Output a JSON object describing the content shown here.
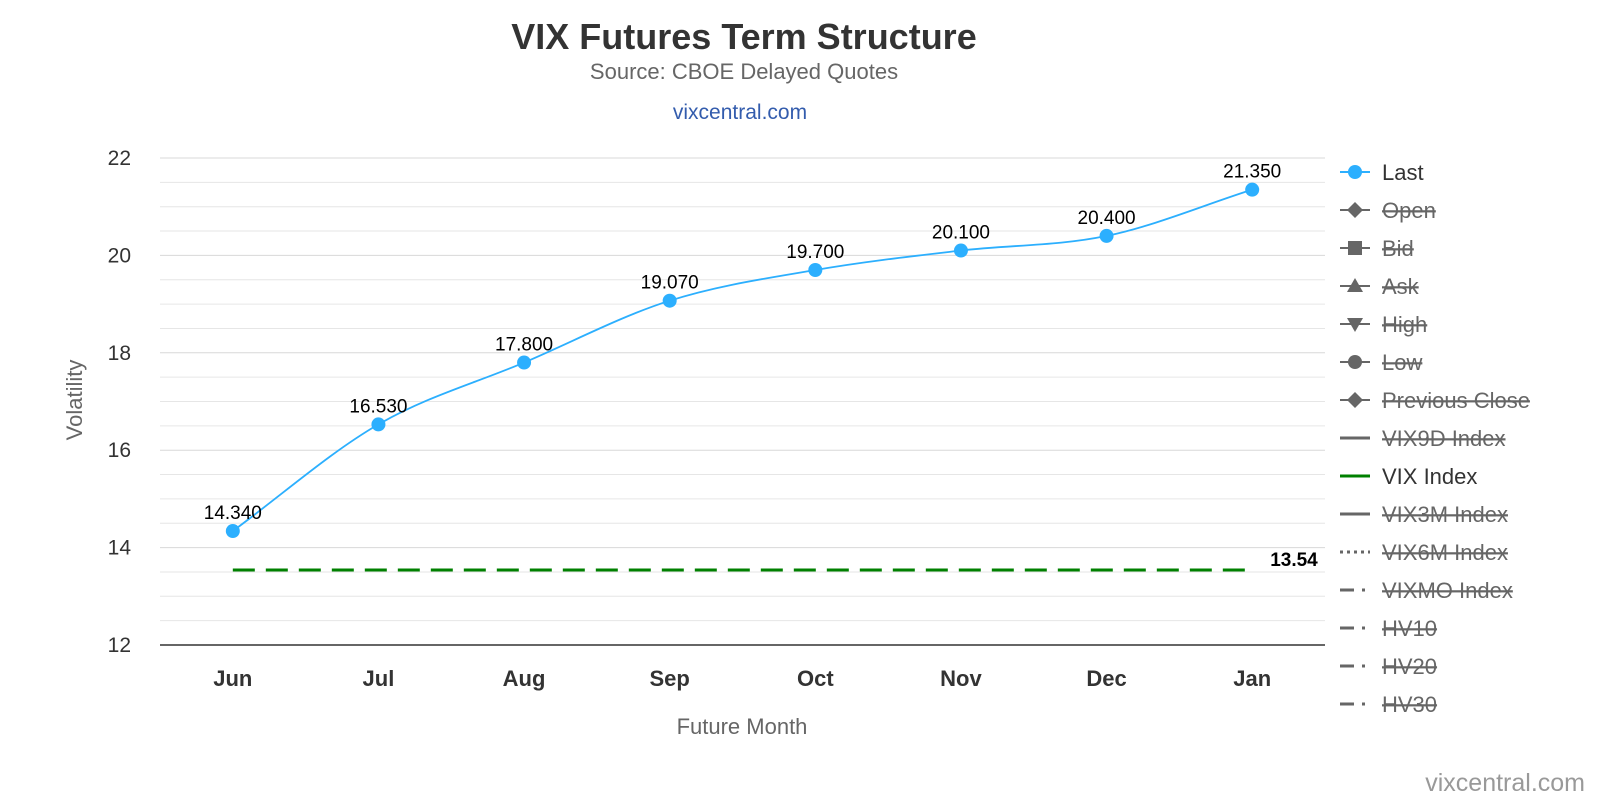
{
  "chart_data": {
    "type": "line",
    "title": "VIX Futures Term Structure",
    "subtitle": "Source: CBOE Delayed Quotes",
    "site_link": "vixcentral.com",
    "credit": "vixcentral.com",
    "xlabel": "Future Month",
    "ylabel": "Volatility",
    "categories": [
      "Jun",
      "Jul",
      "Aug",
      "Sep",
      "Oct",
      "Nov",
      "Dec",
      "Jan"
    ],
    "ylim": [
      12,
      22
    ],
    "yticks": [
      "12",
      "14",
      "16",
      "18",
      "20",
      "22"
    ],
    "grid": true,
    "legend_position": "right",
    "series": [
      {
        "name": "Last",
        "values": [
          14.34,
          16.53,
          17.8,
          19.07,
          19.7,
          20.1,
          20.4,
          21.35
        ],
        "labels": [
          "14.340",
          "16.530",
          "17.800",
          "19.070",
          "19.700",
          "20.100",
          "20.400",
          "21.350"
        ],
        "color": "#2caffe"
      },
      {
        "name": "VIX Index",
        "value": 13.54,
        "label": "13.54",
        "color": "#008000",
        "style": "dashed"
      }
    ],
    "legend": [
      {
        "name": "Last",
        "symbol": "circle",
        "color": "#2caffe",
        "visible": true
      },
      {
        "name": "Open",
        "symbol": "diamond",
        "color": "#666666",
        "visible": false
      },
      {
        "name": "Bid",
        "symbol": "square",
        "color": "#666666",
        "visible": false
      },
      {
        "name": "Ask",
        "symbol": "triangle",
        "color": "#666666",
        "visible": false
      },
      {
        "name": "High",
        "symbol": "triangle-down",
        "color": "#666666",
        "visible": false
      },
      {
        "name": "Low",
        "symbol": "circle",
        "color": "#666666",
        "visible": false
      },
      {
        "name": "Previous Close",
        "symbol": "diamond",
        "color": "#666666",
        "visible": false
      },
      {
        "name": "VIX9D Index",
        "symbol": "line",
        "color": "#666666",
        "visible": false
      },
      {
        "name": "VIX Index",
        "symbol": "line",
        "color": "#008000",
        "visible": true
      },
      {
        "name": "VIX3M Index",
        "symbol": "line",
        "color": "#666666",
        "visible": false
      },
      {
        "name": "VIX6M Index",
        "symbol": "dotted",
        "color": "#666666",
        "visible": false
      },
      {
        "name": "VIXMO Index",
        "symbol": "dashdot",
        "color": "#666666",
        "visible": false
      },
      {
        "name": "HV10",
        "symbol": "dashdot",
        "color": "#666666",
        "visible": false
      },
      {
        "name": "HV20",
        "symbol": "dashdot",
        "color": "#666666",
        "visible": false
      },
      {
        "name": "HV30",
        "symbol": "dashdot",
        "color": "#666666",
        "visible": false
      }
    ]
  }
}
